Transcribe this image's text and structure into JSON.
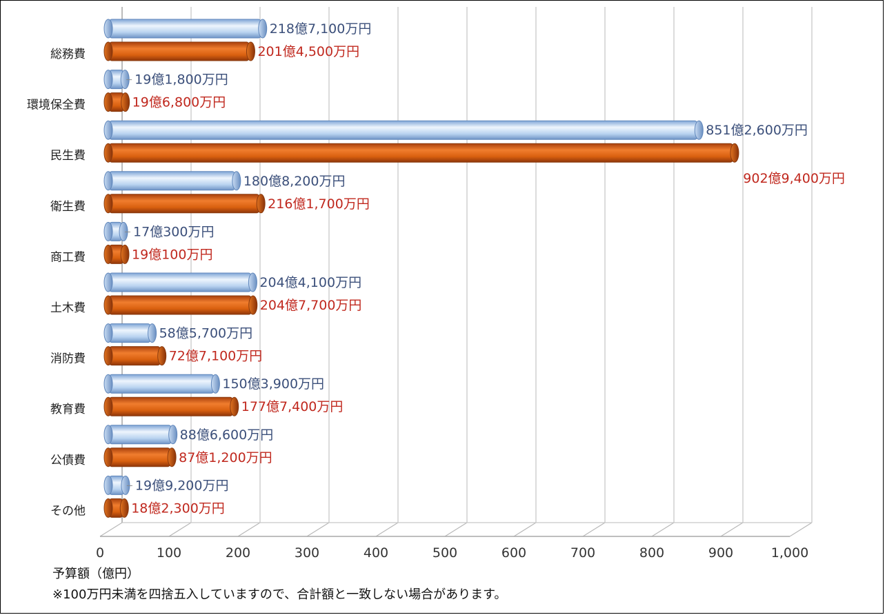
{
  "chart_data": {
    "type": "bar",
    "orientation": "horizontal",
    "categories": [
      "総務費",
      "環境保全費",
      "民生費",
      "衛生費",
      "商工費",
      "土木費",
      "消防費",
      "教育費",
      "公債費",
      "その他"
    ],
    "series": [
      {
        "values": [
          218.71,
          19.18,
          851.26,
          180.82,
          17.03,
          204.41,
          58.57,
          150.39,
          88.66,
          19.92
        ],
        "labels": [
          "218億7,100万円",
          "19億1,800万円",
          "851億2,600万円",
          "180億8,200万円",
          "17億300万円",
          "204億4,100万円",
          "58億5,700万円",
          "150億3,900万円",
          "88億6,600万円",
          "19億9,200万円"
        ],
        "color": "#a9c8ec"
      },
      {
        "values": [
          201.45,
          19.68,
          902.94,
          216.17,
          19.01,
          204.77,
          72.71,
          177.74,
          87.12,
          18.23
        ],
        "labels": [
          "201億4,500万円",
          "19億6,800万円",
          "902億9,400万円",
          "216億1,700万円",
          "19億100万円",
          "204億7,700万円",
          "72億7,100万円",
          "177億7,400万円",
          "87億1,200万円",
          "18億2,300万円"
        ],
        "color": "#e0661a"
      }
    ],
    "xlim": [
      0,
      1000
    ],
    "xticks": [
      "0",
      "100",
      "200",
      "300",
      "400",
      "500",
      "600",
      "700",
      "800",
      "900",
      "1,000"
    ],
    "xlabel": "予算額（億円）",
    "grid": true
  },
  "note": "※100万円未満を四捨五入していますので、合計額と一致しない場合があります。"
}
